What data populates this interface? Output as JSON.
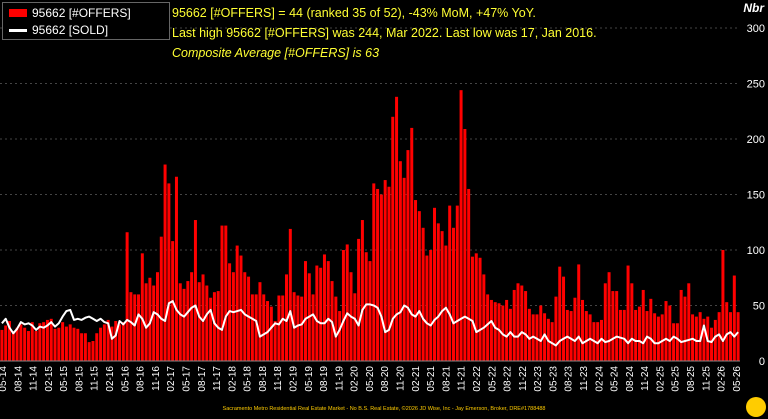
{
  "chart_data": {
    "type": "bar",
    "title_lines": [
      "95662 [#OFFERS] = 44 (ranked 35 of 52), -43% MoM, +47% YoY.",
      "Last high 95662 [#OFFERS] was 244, Mar 2022. Last low was 17, Jan 2016.",
      "Composite Average [#OFFERS] is 63"
    ],
    "ylabel": "Nbr",
    "ylim": [
      0,
      300
    ],
    "yticks": [
      0,
      50,
      100,
      150,
      200,
      250,
      300
    ],
    "grid": true,
    "legend": "top-left",
    "x_tick_labels": [
      "05-14",
      "08-14",
      "11-14",
      "02-15",
      "05-15",
      "08-15",
      "11-15",
      "02-16",
      "05-16",
      "08-16",
      "11-16",
      "02-17",
      "05-17",
      "08-17",
      "11-17",
      "02-18",
      "05-18",
      "08-18",
      "11-18",
      "02-19",
      "05-19",
      "08-19",
      "11-19",
      "02-20",
      "05-20",
      "08-20",
      "11-20",
      "02-21",
      "05-21",
      "08-21",
      "11-21",
      "02-22",
      "05-22",
      "08-22",
      "11-22",
      "02-23",
      "05-23",
      "08-23",
      "11-23",
      "02-24",
      "05-24",
      "08-24",
      "11-24",
      "02-25",
      "05-25",
      "08-25",
      "11-25",
      "02-26",
      "05-26"
    ],
    "series": [
      {
        "name": "95662 [#OFFERS]",
        "kind": "bar",
        "color": "#ff0000",
        "values": [
          28,
          32,
          36,
          27,
          30,
          33,
          30,
          27,
          35,
          27,
          34,
          35,
          37,
          38,
          29,
          30,
          35,
          31,
          33,
          30,
          29,
          25,
          25,
          17,
          18,
          25,
          30,
          33,
          37,
          31,
          36,
          33,
          35,
          116,
          62,
          60,
          60,
          97,
          70,
          75,
          68,
          80,
          112,
          177,
          160,
          108,
          166,
          70,
          65,
          72,
          80,
          127,
          71,
          78,
          68,
          57,
          62,
          63,
          122,
          122,
          88,
          80,
          104,
          95,
          80,
          76,
          60,
          60,
          71,
          60,
          54,
          49,
          36,
          59,
          59,
          78,
          119,
          62,
          59,
          58,
          90,
          79,
          60,
          86,
          84,
          96,
          90,
          72,
          58,
          45,
          100,
          105,
          80,
          61,
          110,
          127,
          98,
          90,
          160,
          155,
          150,
          163,
          157,
          220,
          238,
          180,
          165,
          190,
          210,
          145,
          135,
          120,
          95,
          100,
          138,
          124,
          117,
          104,
          140,
          120,
          140,
          244,
          209,
          155,
          94,
          97,
          93,
          78,
          60,
          55,
          53,
          52,
          50,
          55,
          47,
          64,
          70,
          68,
          63,
          47,
          42,
          42,
          50,
          43,
          38,
          35,
          58,
          85,
          76,
          46,
          45,
          57,
          87,
          55,
          45,
          42,
          35,
          35,
          37,
          70,
          80,
          63,
          63,
          46,
          46,
          86,
          70,
          46,
          49,
          64,
          45,
          56,
          43,
          40,
          42,
          54,
          50,
          34,
          34,
          64,
          58,
          70,
          42,
          40,
          44,
          38,
          40,
          30,
          37,
          44,
          100,
          53,
          44,
          77,
          44
        ]
      },
      {
        "name": "95662 [SOLD]",
        "kind": "line",
        "color": "#ffffff",
        "values": [
          34,
          38,
          30,
          25,
          29,
          35,
          33,
          34,
          32,
          28,
          31,
          30,
          32,
          35,
          31,
          34,
          40,
          45,
          46,
          37,
          38,
          37,
          39,
          40,
          38,
          36,
          38,
          35,
          34,
          20,
          23,
          36,
          33,
          37,
          35,
          32,
          42,
          38,
          30,
          34,
          44,
          42,
          38,
          36,
          52,
          54,
          46,
          42,
          40,
          44,
          48,
          50,
          40,
          36,
          42,
          46,
          34,
          30,
          28,
          40,
          45,
          44,
          45,
          46,
          42,
          40,
          38,
          36,
          22,
          24,
          26,
          30,
          34,
          33,
          38,
          36,
          45,
          30,
          32,
          33,
          38,
          40,
          42,
          36,
          34,
          34,
          38,
          35,
          22,
          28,
          36,
          43,
          40,
          38,
          32,
          46,
          51,
          51,
          50,
          48,
          40,
          26,
          28,
          38,
          42,
          44,
          50,
          48,
          42,
          40,
          45,
          38,
          34,
          32,
          37,
          40,
          45,
          48,
          42,
          34,
          36,
          38,
          40,
          38,
          36,
          26,
          28,
          30,
          33,
          36,
          30,
          28,
          24,
          22,
          26,
          22,
          22,
          26,
          24,
          20,
          22,
          20,
          18,
          24,
          18,
          16,
          14,
          18,
          20,
          22,
          20,
          18,
          22,
          16,
          18,
          20,
          18,
          16,
          20,
          17,
          18,
          20,
          22,
          21,
          20,
          16,
          20,
          18,
          18,
          16,
          22,
          20,
          16,
          16,
          18,
          20,
          18,
          22,
          20,
          17,
          18,
          19,
          20,
          18,
          18,
          32,
          18,
          17,
          22,
          24,
          18,
          24,
          26,
          22,
          26
        ]
      }
    ]
  },
  "legend": {
    "offers_label": "95662 [#OFFERS]",
    "sold_label": "95662 [SOLD]"
  },
  "footer": "Sacramento Metro Residential Real Estate Market - No B.S. Real Estate, ©2026 JD Wise, Inc - Jay Emerson, Broker, DRE#1788488",
  "colors": {
    "bar": "#ff0000",
    "line": "#ffffff",
    "headline": "#ffff33",
    "grid": "#444444"
  }
}
